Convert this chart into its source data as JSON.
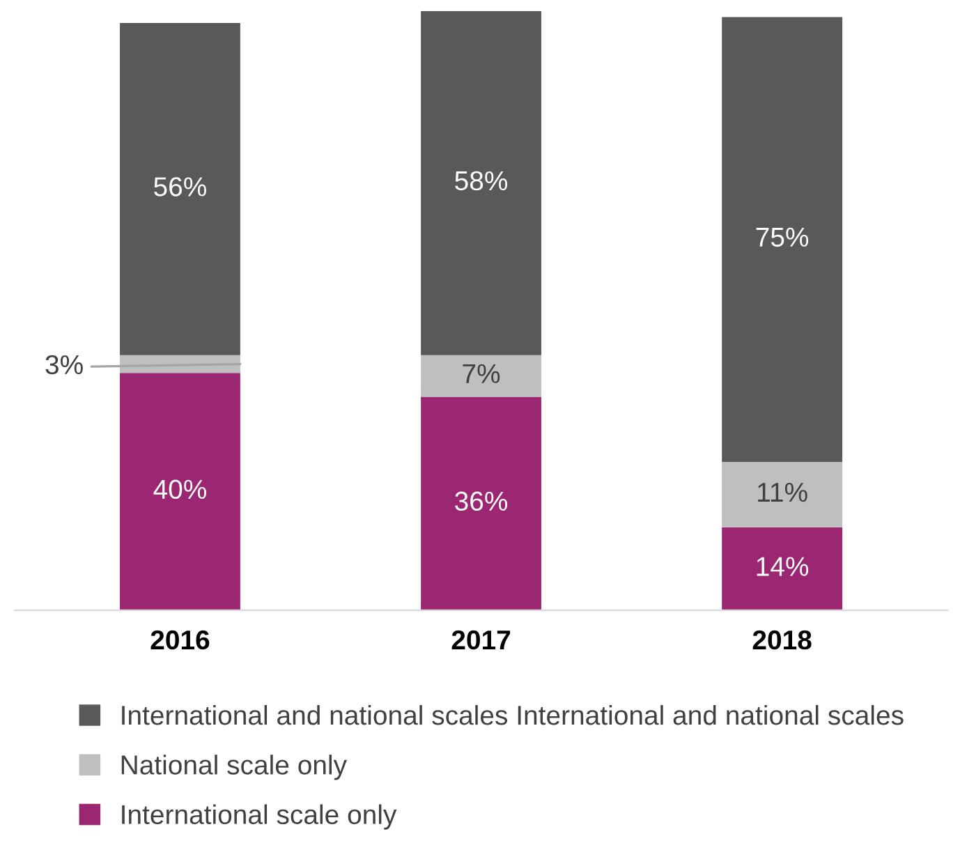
{
  "chart_data": {
    "type": "bar",
    "stacked": true,
    "categories": [
      "2016",
      "2017",
      "2018"
    ],
    "series": [
      {
        "name": "International scale only",
        "color": "#9b2671",
        "values": [
          40,
          36,
          14
        ],
        "value_labels": [
          "40%",
          "36%",
          "14%"
        ]
      },
      {
        "name": "National scale only",
        "color": "#bfbfbf",
        "values": [
          3,
          7,
          11
        ],
        "value_labels": [
          "3%",
          "7%",
          "11%"
        ]
      },
      {
        "name": "International and national scales International and national scales",
        "color": "#595959",
        "values": [
          56,
          58,
          75
        ],
        "value_labels": [
          "56%",
          "58%",
          "75%"
        ]
      }
    ],
    "legend": "bottom",
    "grid": false
  }
}
